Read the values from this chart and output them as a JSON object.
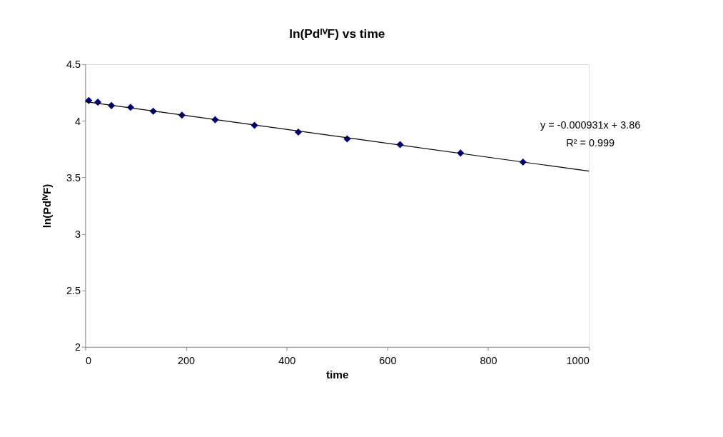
{
  "chart_data": {
    "type": "scatter",
    "title": "ln(PdᴵⱽF) vs time",
    "xlabel": "time",
    "ylabel": "ln(PdᴵⱽF)",
    "xlim": [
      0,
      1000
    ],
    "xticks": [
      0,
      200,
      400,
      600,
      800,
      1000
    ],
    "ylim": [
      2,
      4.5
    ],
    "yticks": [
      2,
      2.5,
      3,
      3.5,
      4,
      4.5
    ],
    "marker": "diamond",
    "grid": false,
    "legend": false,
    "series": [
      {
        "color": "#000080",
        "x": [
          7,
          25,
          52,
          90,
          135,
          192,
          258,
          336,
          423,
          520,
          625,
          745,
          869
        ],
        "values": [
          4.18,
          4.165,
          4.135,
          4.12,
          4.085,
          4.05,
          4.01,
          3.96,
          3.9,
          3.84,
          3.79,
          3.715,
          3.635
        ]
      },
      {
        "type": "line",
        "marker": "none",
        "color": "#000000",
        "x": [
          0,
          1000
        ],
        "values": [
          4.17,
          3.555
        ]
      }
    ],
    "annotations": [
      "y = -0.000931x + 3.86",
      "R² = 0.999"
    ]
  }
}
